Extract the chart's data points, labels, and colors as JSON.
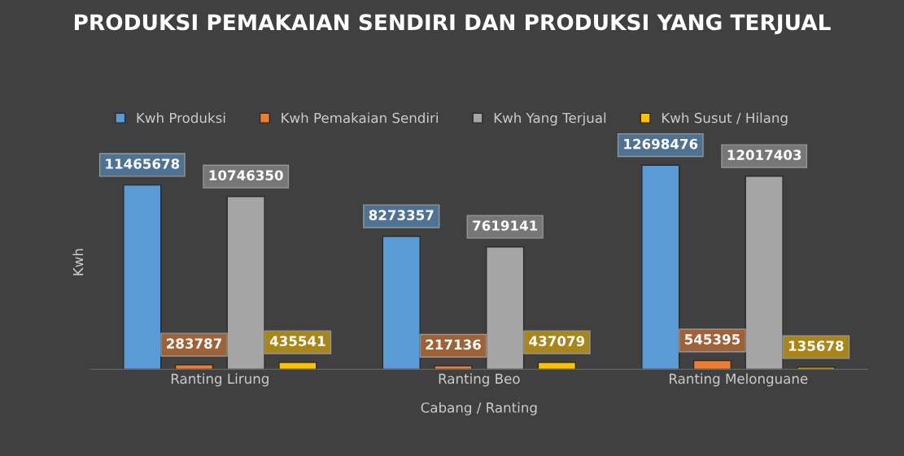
{
  "chart_data": {
    "type": "bar",
    "title": "PRODUKSI PEMAKAIAN SENDIRI DAN PRODUKSI YANG TERJUAL",
    "xlabel": "Cabang / Ranting",
    "ylabel": "Kwh",
    "categories": [
      "Ranting Lirung",
      "Ranting Beo",
      "Ranting Melonguane"
    ],
    "series": [
      {
        "name": "Kwh Produksi",
        "color": "#5b9bd5",
        "values": [
          11465678,
          8273357,
          12698476
        ]
      },
      {
        "name": "Kwh Pemakaian Sendiri",
        "color": "#ed7d31",
        "values": [
          283787,
          217136,
          545395
        ]
      },
      {
        "name": "Kwh Yang Terjual",
        "color": "#a5a5a5",
        "values": [
          10746350,
          7619141,
          12017403
        ]
      },
      {
        "name": "Kwh Susut / Hilang",
        "color": "#ffc000",
        "values": [
          435541,
          437079,
          135678
        ]
      }
    ],
    "data_labels": true,
    "grid": false,
    "legend": "top",
    "tick_labels": "x"
  }
}
